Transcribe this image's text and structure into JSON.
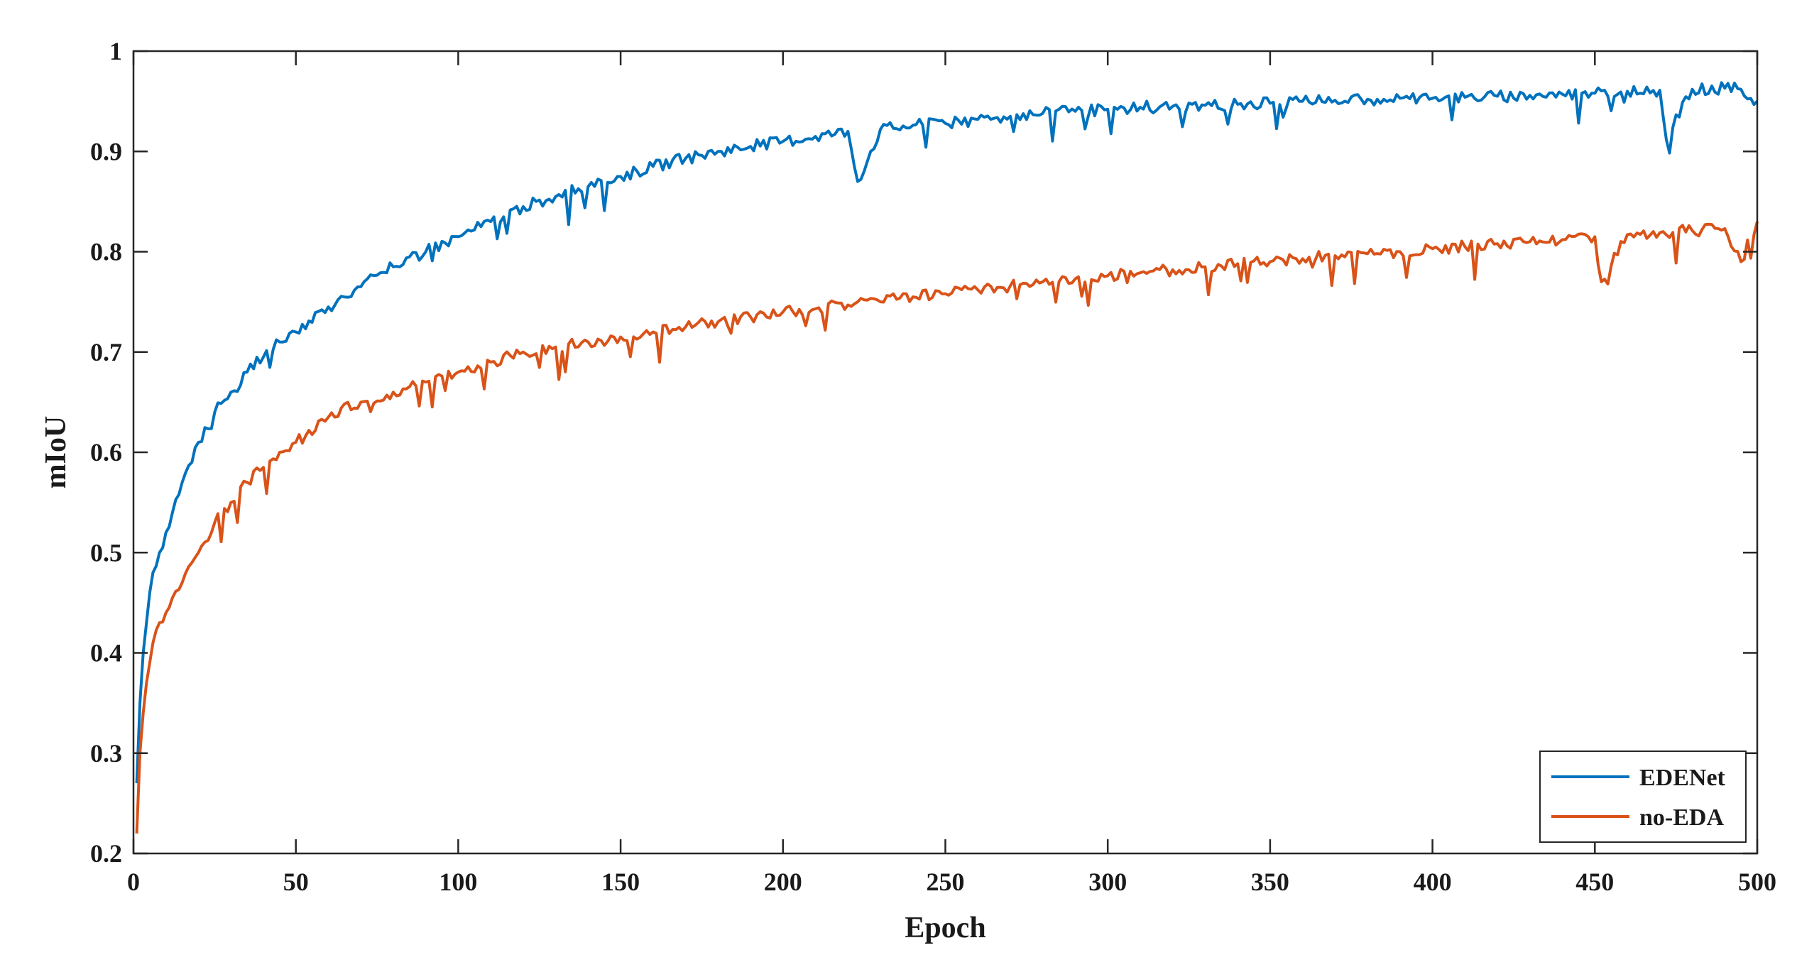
{
  "chart_data": {
    "type": "line",
    "title": "",
    "xlabel": "Epoch",
    "ylabel": "mIoU",
    "xlim": [
      0,
      500
    ],
    "ylim": [
      0.2,
      1.0
    ],
    "xticks": [
      "0",
      "50",
      "100",
      "150",
      "200",
      "250",
      "300",
      "350",
      "400",
      "450",
      "500"
    ],
    "yticks": [
      "0.2",
      "0.3",
      "0.4",
      "0.5",
      "0.6",
      "0.7",
      "0.8",
      "0.9",
      "1"
    ],
    "grid": false,
    "box": true,
    "legend_position": "bottom-right",
    "series": [
      {
        "name": "EDENet",
        "color": "#0072BD",
        "x": [
          1,
          2,
          3,
          4,
          5,
          6,
          8,
          10,
          12,
          15,
          18,
          20,
          25,
          30,
          35,
          40,
          45,
          50,
          60,
          70,
          80,
          90,
          100,
          110,
          120,
          130,
          140,
          150,
          160,
          170,
          180,
          190,
          200,
          210,
          220,
          223,
          230,
          240,
          250,
          260,
          270,
          280,
          290,
          300,
          310,
          320,
          330,
          340,
          350,
          360,
          370,
          380,
          390,
          400,
          410,
          420,
          430,
          440,
          450,
          460,
          470,
          472,
          480,
          490,
          495,
          500
        ],
        "values": [
          0.27,
          0.35,
          0.4,
          0.43,
          0.46,
          0.48,
          0.5,
          0.52,
          0.54,
          0.57,
          0.59,
          0.61,
          0.64,
          0.66,
          0.68,
          0.695,
          0.71,
          0.72,
          0.745,
          0.765,
          0.785,
          0.8,
          0.815,
          0.83,
          0.845,
          0.855,
          0.865,
          0.875,
          0.885,
          0.893,
          0.9,
          0.905,
          0.91,
          0.915,
          0.92,
          0.87,
          0.922,
          0.926,
          0.928,
          0.932,
          0.935,
          0.938,
          0.94,
          0.942,
          0.944,
          0.945,
          0.946,
          0.947,
          0.948,
          0.95,
          0.951,
          0.952,
          0.953,
          0.953,
          0.954,
          0.955,
          0.956,
          0.957,
          0.958,
          0.96,
          0.961,
          0.912,
          0.962,
          0.963,
          0.962,
          0.95
        ]
      },
      {
        "name": "no-EDA",
        "color": "#D95319",
        "x": [
          1,
          2,
          3,
          4,
          5,
          6,
          8,
          10,
          12,
          15,
          18,
          20,
          25,
          30,
          35,
          40,
          45,
          50,
          60,
          70,
          80,
          90,
          100,
          110,
          120,
          130,
          140,
          150,
          160,
          170,
          180,
          190,
          200,
          210,
          220,
          230,
          240,
          250,
          260,
          270,
          280,
          290,
          300,
          310,
          320,
          330,
          340,
          350,
          360,
          370,
          380,
          390,
          400,
          410,
          420,
          430,
          440,
          450,
          452,
          460,
          470,
          480,
          490,
          495,
          500
        ],
        "values": [
          0.22,
          0.3,
          0.34,
          0.37,
          0.39,
          0.41,
          0.43,
          0.44,
          0.455,
          0.47,
          0.49,
          0.5,
          0.53,
          0.55,
          0.57,
          0.585,
          0.6,
          0.61,
          0.635,
          0.65,
          0.66,
          0.67,
          0.68,
          0.69,
          0.7,
          0.705,
          0.71,
          0.715,
          0.72,
          0.725,
          0.73,
          0.735,
          0.74,
          0.743,
          0.747,
          0.75,
          0.755,
          0.758,
          0.762,
          0.766,
          0.77,
          0.773,
          0.776,
          0.779,
          0.782,
          0.785,
          0.788,
          0.79,
          0.793,
          0.796,
          0.798,
          0.8,
          0.803,
          0.805,
          0.808,
          0.81,
          0.812,
          0.815,
          0.77,
          0.817,
          0.819,
          0.821,
          0.823,
          0.79,
          0.83
        ]
      }
    ]
  }
}
